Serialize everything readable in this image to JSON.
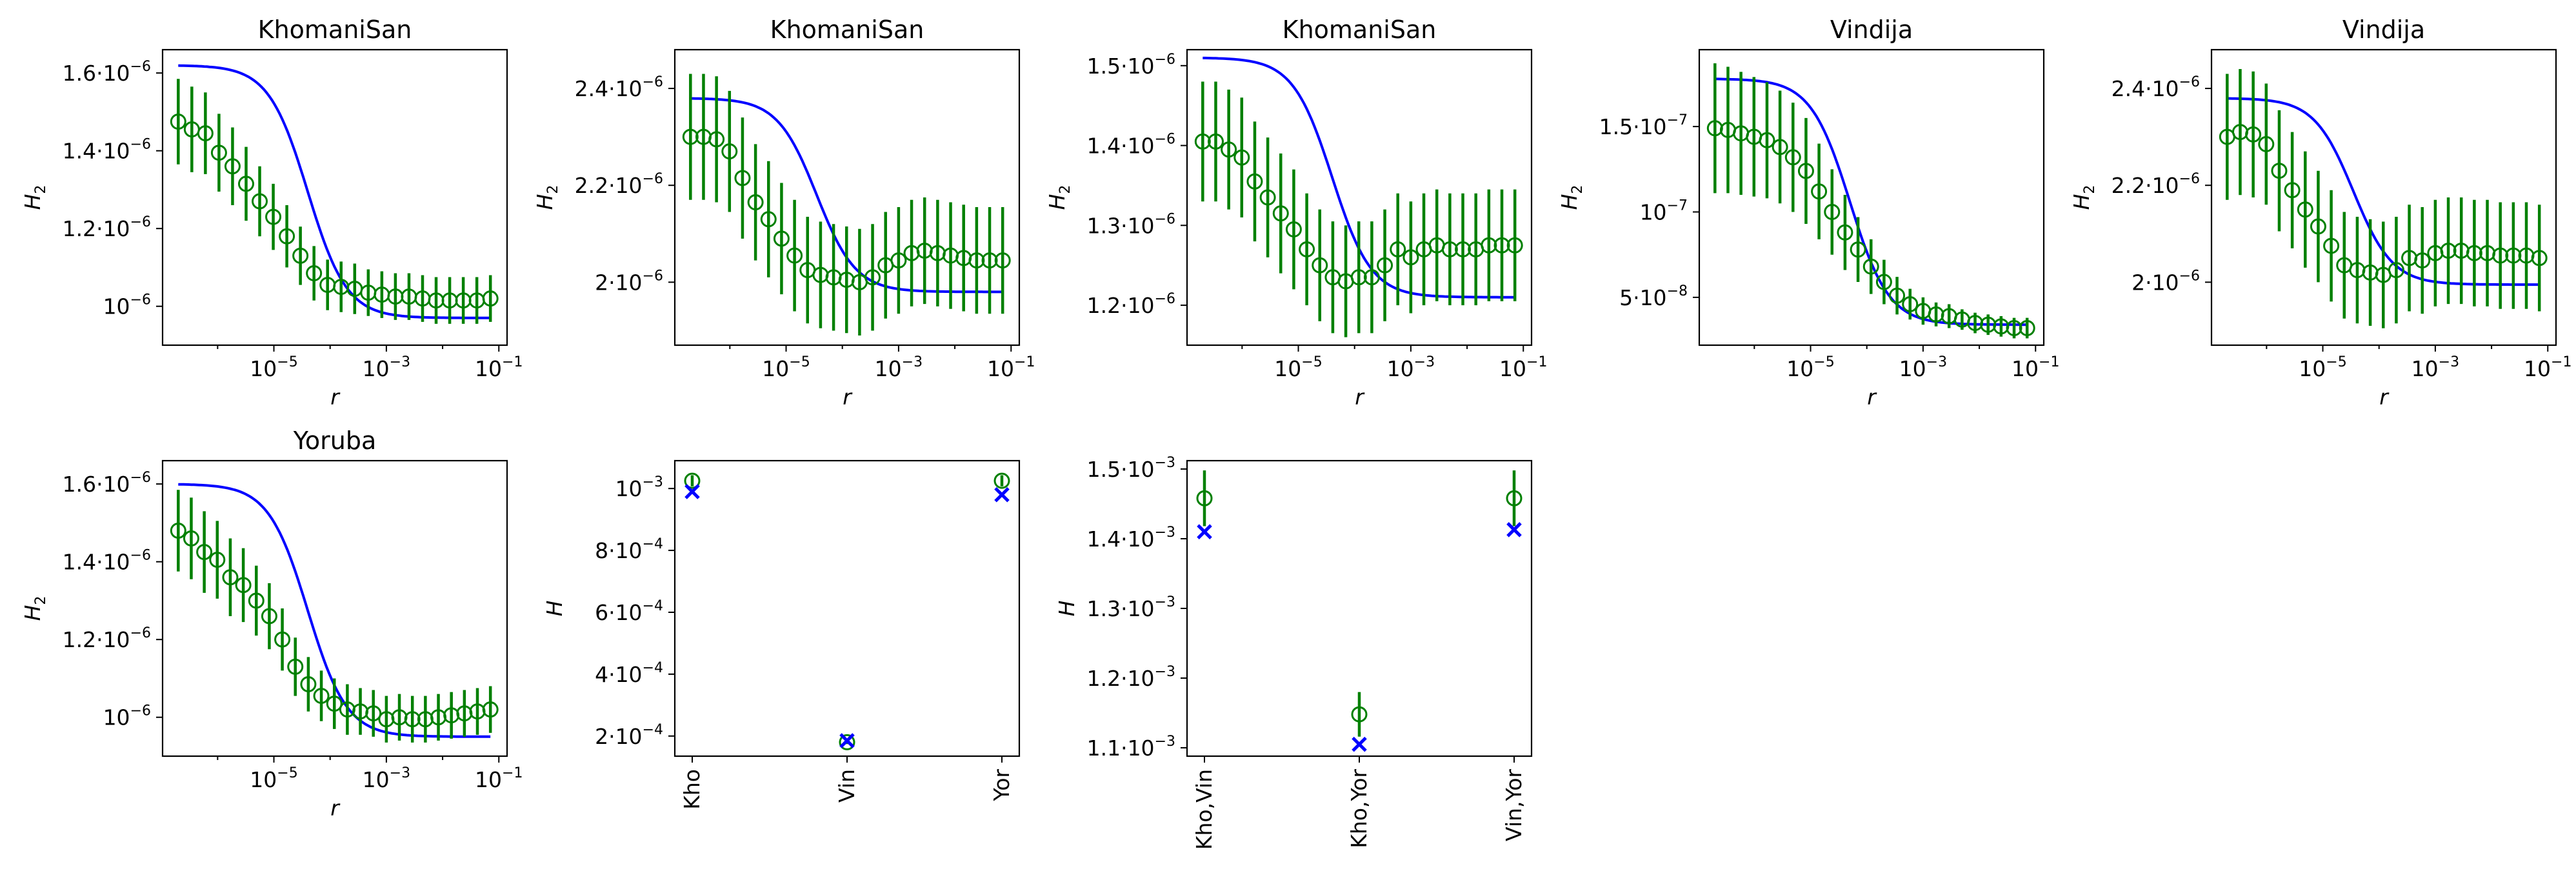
{
  "colors": {
    "model": "#0000ff",
    "data": "#008000"
  },
  "chart_data": [
    {
      "type": "line",
      "title": "KhomaniSan",
      "xlabel": "r",
      "ylabel": "H_2",
      "xscale": "log",
      "xlim": [
        1.05e-07,
        0.14
      ],
      "ylim": [
        9e-07,
        1.66e-06
      ],
      "xticks": [
        {
          "v": 1e-05,
          "e": "−5"
        },
        {
          "v": 0.001,
          "e": "−3"
        },
        {
          "v": 0.1,
          "e": "−1"
        }
      ],
      "yticks": [
        {
          "v": 1e-06,
          "m": "",
          "e": "−6"
        },
        {
          "v": 1.2e-06,
          "m": "1.2",
          "e": "−6"
        },
        {
          "v": 1.4e-06,
          "m": "1.4",
          "e": "−6"
        },
        {
          "v": 1.6e-06,
          "m": "1.6",
          "e": "−6"
        }
      ],
      "model": {
        "lo": 9.7e-07,
        "hi": 1.62e-06,
        "r0": 4e-05
      },
      "data": {
        "y": [
          1.475e-06,
          1.455e-06,
          1.445e-06,
          1.395e-06,
          1.36e-06,
          1.315e-06,
          1.27e-06,
          1.23e-06,
          1.18e-06,
          1.13e-06,
          1.085e-06,
          1.055e-06,
          1.05e-06,
          1.045e-06,
          1.035e-06,
          1.03e-06,
          1.025e-06,
          1.025e-06,
          1.02e-06,
          1.015e-06,
          1.015e-06,
          1.015e-06,
          1.015e-06,
          1.02e-06
        ],
        "err": [
          1.1e-07,
          1.1e-07,
          1.05e-07,
          1e-07,
          1e-07,
          9.5e-08,
          9e-08,
          8.5e-08,
          8e-08,
          7.5e-08,
          7e-08,
          6.5e-08,
          6.5e-08,
          6.5e-08,
          6e-08,
          6e-08,
          6e-08,
          6e-08,
          6e-08,
          6e-08,
          6e-08,
          6e-08,
          6e-08,
          6e-08
        ]
      }
    },
    {
      "type": "line",
      "title": "KhomaniSan",
      "xlabel": "r",
      "ylabel": "H_2",
      "xscale": "log",
      "xlim": [
        1.05e-07,
        0.14
      ],
      "ylim": [
        1.87e-06,
        2.48e-06
      ],
      "xticks": [
        {
          "v": 1e-05,
          "e": "−5"
        },
        {
          "v": 0.001,
          "e": "−3"
        },
        {
          "v": 0.1,
          "e": "−1"
        }
      ],
      "yticks": [
        {
          "v": 2e-06,
          "m": "2",
          "e": "−6"
        },
        {
          "v": 2.2e-06,
          "m": "2.2",
          "e": "−6"
        },
        {
          "v": 2.4e-06,
          "m": "2.4",
          "e": "−6"
        }
      ],
      "model": {
        "lo": 1.98e-06,
        "hi": 2.38e-06,
        "r0": 3.5e-05
      },
      "data": {
        "y": [
          2.3e-06,
          2.3e-06,
          2.295e-06,
          2.27e-06,
          2.215e-06,
          2.165e-06,
          2.13e-06,
          2.09e-06,
          2.055e-06,
          2.025e-06,
          2.015e-06,
          2.01e-06,
          2.005e-06,
          2e-06,
          2.01e-06,
          2.035e-06,
          2.045e-06,
          2.06e-06,
          2.065e-06,
          2.06e-06,
          2.055e-06,
          2.05e-06,
          2.045e-06,
          2.045e-06,
          2.045e-06
        ],
        "err": [
          1.3e-07,
          1.3e-07,
          1.3e-07,
          1.25e-07,
          1.25e-07,
          1.2e-07,
          1.2e-07,
          1.15e-07,
          1.15e-07,
          1.1e-07,
          1.1e-07,
          1.1e-07,
          1.1e-07,
          1.1e-07,
          1.1e-07,
          1.1e-07,
          1.1e-07,
          1.1e-07,
          1.1e-07,
          1.1e-07,
          1.1e-07,
          1.1e-07,
          1.1e-07,
          1.1e-07,
          1.1e-07
        ]
      }
    },
    {
      "type": "line",
      "title": "KhomaniSan",
      "xlabel": "r",
      "ylabel": "H_2",
      "xscale": "log",
      "xlim": [
        1.05e-07,
        0.14
      ],
      "ylim": [
        1.15e-06,
        1.52e-06
      ],
      "xticks": [
        {
          "v": 1e-05,
          "e": "−5"
        },
        {
          "v": 0.001,
          "e": "−3"
        },
        {
          "v": 0.1,
          "e": "−1"
        }
      ],
      "yticks": [
        {
          "v": 1.2e-06,
          "m": "1.2",
          "e": "−6"
        },
        {
          "v": 1.3e-06,
          "m": "1.3",
          "e": "−6"
        },
        {
          "v": 1.4e-06,
          "m": "1.4",
          "e": "−6"
        },
        {
          "v": 1.5e-06,
          "m": "1.5",
          "e": "−6"
        }
      ],
      "model": {
        "lo": 1.21e-06,
        "hi": 1.51e-06,
        "r0": 4e-05
      },
      "data": {
        "y": [
          1.405e-06,
          1.405e-06,
          1.395e-06,
          1.385e-06,
          1.355e-06,
          1.335e-06,
          1.315e-06,
          1.295e-06,
          1.27e-06,
          1.25e-06,
          1.235e-06,
          1.23e-06,
          1.235e-06,
          1.235e-06,
          1.25e-06,
          1.27e-06,
          1.26e-06,
          1.27e-06,
          1.275e-06,
          1.27e-06,
          1.27e-06,
          1.27e-06,
          1.275e-06,
          1.275e-06,
          1.275e-06
        ],
        "err": [
          7.5e-08,
          7.5e-08,
          7.5e-08,
          7.5e-08,
          7.5e-08,
          7.5e-08,
          7.5e-08,
          7.5e-08,
          7e-08,
          7e-08,
          7e-08,
          7e-08,
          7e-08,
          7e-08,
          7e-08,
          7e-08,
          7e-08,
          7e-08,
          7e-08,
          7e-08,
          7e-08,
          7e-08,
          7e-08,
          7e-08,
          7e-08
        ]
      }
    },
    {
      "type": "line",
      "title": "Vindija",
      "xlabel": "r",
      "ylabel": "H_2",
      "xscale": "log",
      "xlim": [
        1.05e-07,
        0.14
      ],
      "ylim": [
        2.2e-08,
        1.95e-07
      ],
      "xticks": [
        {
          "v": 1e-05,
          "e": "−5"
        },
        {
          "v": 0.001,
          "e": "−3"
        },
        {
          "v": 0.1,
          "e": "−1"
        }
      ],
      "yticks": [
        {
          "v": 5e-08,
          "m": "5",
          "e": "−8"
        },
        {
          "v": 1e-07,
          "m": "",
          "e": "−7"
        },
        {
          "v": 1.5e-07,
          "m": "1.5",
          "e": "−7"
        }
      ],
      "model": {
        "lo": 3.4e-08,
        "hi": 1.78e-07,
        "r0": 5e-05
      },
      "data": {
        "y": [
          1.49e-07,
          1.48e-07,
          1.46e-07,
          1.44e-07,
          1.42e-07,
          1.38e-07,
          1.32e-07,
          1.24e-07,
          1.12e-07,
          1e-07,
          8.8e-08,
          7.8e-08,
          6.8e-08,
          5.9e-08,
          5.1e-08,
          4.6e-08,
          4.2e-08,
          4e-08,
          3.9e-08,
          3.7e-08,
          3.5e-08,
          3.4e-08,
          3.3e-08,
          3.2e-08,
          3.2e-08
        ],
        "err": [
          3.8e-08,
          3.7e-08,
          3.6e-08,
          3.5e-08,
          3.4e-08,
          3.3e-08,
          3.2e-08,
          3.1e-08,
          2.8e-08,
          2.5e-08,
          2.2e-08,
          1.9e-08,
          1.6e-08,
          1.3e-08,
          1.1e-08,
          9e-09,
          8e-09,
          7e-09,
          7e-09,
          6e-09,
          6e-09,
          6e-09,
          6e-09,
          6e-09,
          6e-09
        ]
      }
    },
    {
      "type": "line",
      "title": "Vindija",
      "xlabel": "r",
      "ylabel": "H_2",
      "xscale": "log",
      "xlim": [
        1.05e-07,
        0.14
      ],
      "ylim": [
        1.87e-06,
        2.48e-06
      ],
      "xticks": [
        {
          "v": 1e-05,
          "e": "−5"
        },
        {
          "v": 0.001,
          "e": "−3"
        },
        {
          "v": 0.1,
          "e": "−1"
        }
      ],
      "yticks": [
        {
          "v": 2e-06,
          "m": "2",
          "e": "−6"
        },
        {
          "v": 2.2e-06,
          "m": "2.2",
          "e": "−6"
        },
        {
          "v": 2.4e-06,
          "m": "2.4",
          "e": "−6"
        }
      ],
      "model": {
        "lo": 1.995e-06,
        "hi": 2.38e-06,
        "r0": 3.5e-05
      },
      "data": {
        "y": [
          2.3e-06,
          2.31e-06,
          2.305e-06,
          2.285e-06,
          2.23e-06,
          2.19e-06,
          2.15e-06,
          2.115e-06,
          2.075e-06,
          2.035e-06,
          2.025e-06,
          2.02e-06,
          2.015e-06,
          2.025e-06,
          2.05e-06,
          2.045e-06,
          2.06e-06,
          2.065e-06,
          2.065e-06,
          2.06e-06,
          2.06e-06,
          2.055e-06,
          2.055e-06,
          2.055e-06,
          2.05e-06
        ],
        "err": [
          1.3e-07,
          1.3e-07,
          1.3e-07,
          1.25e-07,
          1.25e-07,
          1.2e-07,
          1.2e-07,
          1.15e-07,
          1.15e-07,
          1.1e-07,
          1.1e-07,
          1.1e-07,
          1.1e-07,
          1.1e-07,
          1.1e-07,
          1.1e-07,
          1.1e-07,
          1.1e-07,
          1.1e-07,
          1.1e-07,
          1.1e-07,
          1.1e-07,
          1.1e-07,
          1.1e-07,
          1.1e-07
        ]
      }
    },
    {
      "type": "line",
      "title": "Yoruba",
      "xlabel": "r",
      "ylabel": "H_2",
      "xscale": "log",
      "xlim": [
        1.05e-07,
        0.14
      ],
      "ylim": [
        9e-07,
        1.66e-06
      ],
      "xticks": [
        {
          "v": 1e-05,
          "e": "−5"
        },
        {
          "v": 0.001,
          "e": "−3"
        },
        {
          "v": 0.1,
          "e": "−1"
        }
      ],
      "yticks": [
        {
          "v": 1e-06,
          "m": "",
          "e": "−6"
        },
        {
          "v": 1.2e-06,
          "m": "1.2",
          "e": "−6"
        },
        {
          "v": 1.4e-06,
          "m": "1.4",
          "e": "−6"
        },
        {
          "v": 1.6e-06,
          "m": "1.6",
          "e": "−6"
        }
      ],
      "model": {
        "lo": 9.5e-07,
        "hi": 1.6e-06,
        "r0": 4e-05
      },
      "data": {
        "y": [
          1.48e-06,
          1.46e-06,
          1.425e-06,
          1.405e-06,
          1.36e-06,
          1.34e-06,
          1.3e-06,
          1.26e-06,
          1.2e-06,
          1.13e-06,
          1.085e-06,
          1.055e-06,
          1.035e-06,
          1.02e-06,
          1.015e-06,
          1.01e-06,
          9.95e-07,
          1e-06,
          9.95e-07,
          9.95e-07,
          1e-06,
          1.005e-06,
          1.01e-06,
          1.015e-06,
          1.02e-06
        ],
        "err": [
          1.05e-07,
          1.05e-07,
          1.05e-07,
          1e-07,
          1e-07,
          9.5e-08,
          9e-08,
          8.5e-08,
          8e-08,
          7.5e-08,
          7e-08,
          6.5e-08,
          6.5e-08,
          6.5e-08,
          6e-08,
          6e-08,
          6e-08,
          6e-08,
          6e-08,
          6e-08,
          6e-08,
          6e-08,
          6e-08,
          6e-08,
          6e-08
        ]
      }
    },
    {
      "type": "scatter",
      "title": "",
      "xlabel": "",
      "ylabel": "H",
      "categories": [
        "Kho",
        "Vin",
        "Yor"
      ],
      "ylim": [
        0.000135,
        0.00109
      ],
      "yticks": [
        {
          "v": 0.0002,
          "m": "2",
          "e": "−4"
        },
        {
          "v": 0.0004,
          "m": "4",
          "e": "−4"
        },
        {
          "v": 0.0006,
          "m": "6",
          "e": "−4"
        },
        {
          "v": 0.0008,
          "m": "8",
          "e": "−4"
        },
        {
          "v": 0.001,
          "m": "",
          "e": "−3"
        }
      ],
      "data": {
        "y": [
          0.001025,
          0.00018,
          0.001025
        ],
        "err": [
          1.8e-05,
          6e-06,
          1.8e-05
        ]
      },
      "model": [
        0.00099,
        0.000185,
        0.00098
      ]
    },
    {
      "type": "scatter",
      "title": "",
      "xlabel": "",
      "ylabel": "H",
      "categories": [
        "Kho,Vin",
        "Kho,Yor",
        "Vin,Yor"
      ],
      "ylim": [
        0.001088,
        0.001512
      ],
      "yticks": [
        {
          "v": 0.0011,
          "m": "1.1",
          "e": "−3"
        },
        {
          "v": 0.0012,
          "m": "1.2",
          "e": "−3"
        },
        {
          "v": 0.0013,
          "m": "1.3",
          "e": "−3"
        },
        {
          "v": 0.0014,
          "m": "1.4",
          "e": "−3"
        },
        {
          "v": 0.0015,
          "m": "1.5",
          "e": "−3"
        }
      ],
      "data": {
        "y": [
          0.001458,
          0.001148,
          0.001458
        ],
        "err": [
          4e-05,
          3.2e-05,
          4e-05
        ]
      },
      "model": [
        0.00141,
        0.001105,
        0.001413
      ]
    }
  ]
}
